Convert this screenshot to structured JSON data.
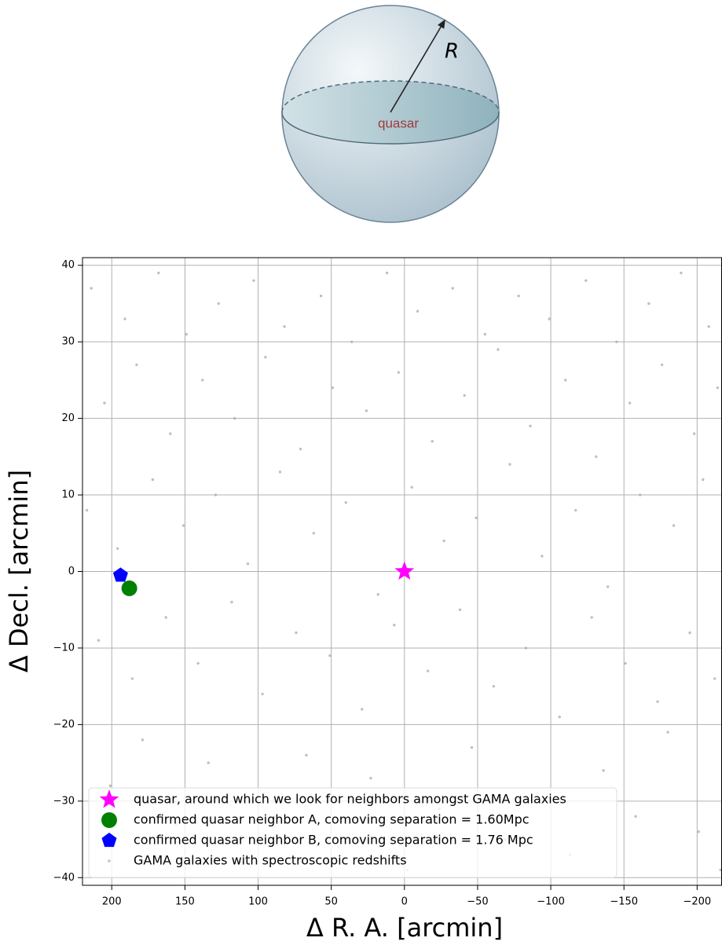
{
  "diagram": {
    "radius_label": "R",
    "center_label": "quasar"
  },
  "chart_data": {
    "type": "scatter",
    "xlabel": "Δ R. A. [arcmin]",
    "ylabel": "Δ Decl. [arcmin]",
    "xlim": [
      220,
      -217
    ],
    "ylim": [
      -41,
      41
    ],
    "xticks": [
      200,
      150,
      100,
      50,
      0,
      {
        "value": -50,
        "label": "−50"
      },
      {
        "value": -100,
        "label": "−100"
      },
      {
        "value": -150,
        "label": "−150"
      },
      {
        "value": -200,
        "label": "−200"
      }
    ],
    "yticks": [
      {
        "value": -40,
        "label": "−40"
      },
      {
        "value": -30,
        "label": "−30"
      },
      {
        "value": -20,
        "label": "−20"
      },
      {
        "value": -10,
        "label": "−10"
      },
      0,
      10,
      20,
      30,
      40
    ],
    "grid": true,
    "legend": "lower left",
    "series": [
      {
        "name": "quasar, around which we look for neighbors amongst GAMA galaxies",
        "color": "#ff00ff",
        "marker": "star",
        "x": [
          0
        ],
        "y": [
          0
        ]
      },
      {
        "name": "confirmed quasar neighbor A, comoving separation = 1.60Mpc",
        "color": "#008000",
        "marker": "circle",
        "x": [
          188
        ],
        "y": [
          -2.2
        ]
      },
      {
        "name": "confirmed quasar neighbor B, comoving separation = 1.76 Mpc",
        "color": "#0000ff",
        "marker": "pentagon",
        "x": [
          194
        ],
        "y": [
          -0.5
        ]
      },
      {
        "name": "GAMA galaxies with spectroscopic redshifts",
        "color": "#aaaaaa",
        "marker": "dot",
        "x": [
          214,
          191,
          168,
          149,
          127,
          103,
          82,
          57,
          36,
          12,
          -9,
          -33,
          -55,
          -78,
          -99,
          -124,
          -145,
          -167,
          -189,
          -208,
          205,
          183,
          160,
          138,
          116,
          95,
          71,
          49,
          26,
          4,
          -19,
          -41,
          -64,
          -86,
          -110,
          -131,
          -154,
          -176,
          -198,
          -214,
          217,
          196,
          172,
          151,
          129,
          107,
          85,
          62,
          40,
          18,
          -5,
          -27,
          -49,
          -72,
          -94,
          -117,
          -139,
          -161,
          -184,
          -204,
          209,
          186,
          163,
          141,
          118,
          97,
          74,
          51,
          29,
          7,
          -16,
          -38,
          -61,
          -83,
          -106,
          -128,
          -151,
          -173,
          -195,
          -212,
          201,
          179,
          156,
          134,
          112,
          90,
          67,
          45,
          23,
          -2,
          -24,
          -46,
          -69,
          -91,
          -113,
          -136,
          -158,
          -180,
          -201,
          -216
        ],
        "y": [
          37,
          33,
          39,
          31,
          35,
          38,
          32,
          36,
          30,
          39,
          34,
          37,
          31,
          36,
          33,
          38,
          30,
          35,
          39,
          32,
          22,
          27,
          18,
          25,
          20,
          28,
          16,
          24,
          21,
          26,
          17,
          23,
          29,
          19,
          25,
          15,
          22,
          27,
          18,
          24,
          8,
          3,
          12,
          6,
          10,
          1,
          13,
          5,
          9,
          -3,
          11,
          4,
          7,
          14,
          2,
          8,
          -2,
          10,
          6,
          12,
          -9,
          -14,
          -6,
          -12,
          -4,
          -16,
          -8,
          -11,
          -18,
          -7,
          -13,
          -5,
          -15,
          -10,
          -19,
          -6,
          -12,
          -17,
          -8,
          -14,
          -28,
          -22,
          -33,
          -25,
          -38,
          -30,
          -24,
          -36,
          -27,
          -39,
          -31,
          -23,
          -35,
          -29,
          -37,
          -26,
          -32,
          -21,
          -34,
          -39
        ]
      }
    ]
  }
}
